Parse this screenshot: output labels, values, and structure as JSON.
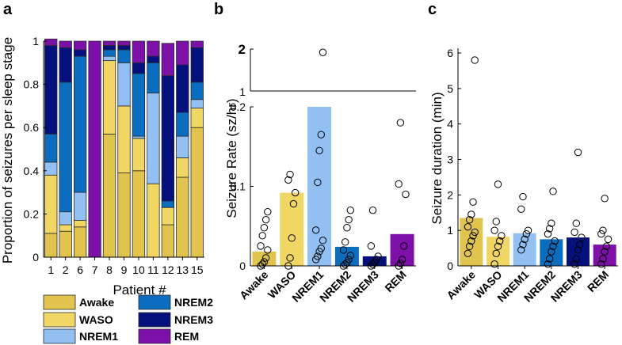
{
  "colors": {
    "Awake": "#E0C44E",
    "WASO": "#F0D763",
    "NREM1": "#92C0F3",
    "NREM2": "#0A6DBF",
    "NREM3": "#04117C",
    "REM": "#7C10A9",
    "bar_edge": "#2B2B2B"
  },
  "chart_data": [
    {
      "panel_label": "a",
      "type": "bar",
      "stacked": true,
      "title": "",
      "xlabel": "Patient #",
      "ylabel": "Proportion of seizures per sleep stage",
      "ylim": [
        0,
        1
      ],
      "yticks": [
        "0",
        "0.2",
        "0.4",
        "0.6",
        "0.8",
        "1"
      ],
      "categories": [
        "1",
        "2",
        "6",
        "7",
        "8",
        "9",
        "10",
        "11",
        "12",
        "13",
        "15"
      ],
      "series": [
        {
          "name": "Awake",
          "values": [
            0.11,
            0.12,
            0.14,
            0.0,
            0.57,
            0.39,
            0.4,
            0.0,
            0.15,
            0.37,
            0.6
          ]
        },
        {
          "name": "WASO",
          "values": [
            0.27,
            0.03,
            0.03,
            0.0,
            0.34,
            0.31,
            0.15,
            0.34,
            0.08,
            0.09,
            0.09
          ]
        },
        {
          "name": "NREM1",
          "values": [
            0.06,
            0.06,
            0.13,
            0.0,
            0.02,
            0.2,
            0.01,
            0.42,
            0.0,
            0.1,
            0.04
          ]
        },
        {
          "name": "NREM2",
          "values": [
            0.13,
            0.6,
            0.63,
            0.0,
            0.03,
            0.06,
            0.29,
            0.14,
            0.03,
            0.11,
            0.08
          ]
        },
        {
          "name": "NREM3",
          "values": [
            0.41,
            0.16,
            0.03,
            0.0,
            0.02,
            0.02,
            0.05,
            0.03,
            0.58,
            0.22,
            0.16
          ]
        },
        {
          "name": "REM",
          "values": [
            0.03,
            0.03,
            0.04,
            1.0,
            0.02,
            0.02,
            0.1,
            0.07,
            0.15,
            0.11,
            0.03
          ]
        }
      ],
      "legend": {
        "placement": "bottom",
        "entries": [
          "Awake",
          "WASO",
          "NREM1",
          "NREM2",
          "NREM3",
          "REM"
        ]
      },
      "grid": false
    },
    {
      "panel_label": "b",
      "type": "bar",
      "broken_axis": true,
      "title": "",
      "xlabel": "",
      "ylabel": "Seizure Rate (sz/hr)",
      "ylim_lower": [
        0,
        0.2
      ],
      "ylim_upper": [
        1,
        2
      ],
      "yticks_lower": [
        "0",
        "0.1",
        "0.2"
      ],
      "yticks_upper": [
        "1",
        "2"
      ],
      "categories": [
        "Awake",
        "WASO",
        "NREM1",
        "NREM2",
        "NREM3",
        "REM"
      ],
      "values": [
        0.018,
        0.092,
        0.2,
        0.024,
        0.012,
        0.04
      ],
      "points": [
        [
          0.0,
          0.002,
          0.005,
          0.01,
          0.02,
          0.025,
          0.038,
          0.048,
          0.058,
          0.068
        ],
        [
          0.0,
          0.01,
          0.035,
          0.078,
          0.092,
          0.108,
          0.115
        ],
        [
          0.008,
          0.012,
          0.018,
          0.022,
          0.032,
          0.045,
          0.105,
          0.145,
          0.165,
          1.92
        ],
        [
          0.0,
          0.002,
          0.004,
          0.008,
          0.013,
          0.02,
          0.03,
          0.048,
          0.058,
          0.07
        ],
        [
          0.0,
          0.002,
          0.004,
          0.008,
          0.012,
          0.025,
          0.07
        ],
        [
          0.0,
          0.003,
          0.008,
          0.025,
          0.09,
          0.103,
          0.18
        ]
      ],
      "grid": false
    },
    {
      "panel_label": "c",
      "type": "bar",
      "title": "",
      "xlabel": "",
      "ylabel": "Seizure duration (min)",
      "ylim": [
        0,
        6
      ],
      "yticks": [
        "0",
        "1",
        "2",
        "3",
        "4",
        "5",
        "6"
      ],
      "categories": [
        "Awake",
        "WASO",
        "NREM1",
        "NREM2",
        "NREM3",
        "REM"
      ],
      "values": [
        1.35,
        0.82,
        0.92,
        0.75,
        0.8,
        0.6
      ],
      "points": [
        [
          0.35,
          0.55,
          0.7,
          0.85,
          0.95,
          1.1,
          1.3,
          1.45,
          1.8,
          5.8
        ],
        [
          0.05,
          0.35,
          0.55,
          0.7,
          0.85,
          1.0,
          1.25,
          2.3
        ],
        [
          0.45,
          0.6,
          0.75,
          0.9,
          1.0,
          1.6,
          1.95
        ],
        [
          0.05,
          0.2,
          0.4,
          0.55,
          0.7,
          0.9,
          1.05,
          1.2,
          2.1
        ],
        [
          0.05,
          0.2,
          0.45,
          0.6,
          0.8,
          0.95,
          1.2,
          3.2
        ],
        [
          0.05,
          0.2,
          0.4,
          0.55,
          0.75,
          0.9,
          1.0,
          1.9
        ]
      ],
      "grid": false
    }
  ]
}
